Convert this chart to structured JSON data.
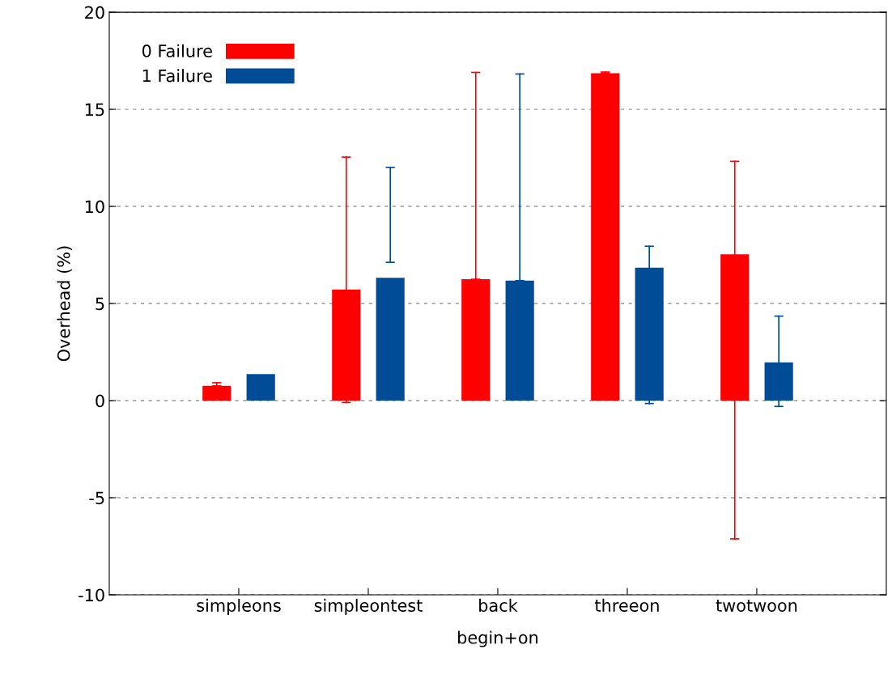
{
  "chart_data": {
    "type": "bar",
    "xlabel": "begin+on",
    "ylabel": "Overhead (%)",
    "categories": [
      "simpleons",
      "simpleontest",
      "back",
      "threeon",
      "twotwoon"
    ],
    "series": [
      {
        "name": "0 Failure",
        "color": "#ff0000",
        "values": [
          0.76,
          5.72,
          6.25,
          16.86,
          7.53
        ],
        "errors": [
          [
            0.76,
            0.92
          ],
          [
            -0.1,
            12.54
          ],
          [
            6.25,
            16.9
          ],
          [
            16.86,
            16.92
          ],
          [
            -7.12,
            12.32
          ]
        ]
      },
      {
        "name": "1 Failure",
        "color": "#004c97",
        "values": [
          1.37,
          6.32,
          6.18,
          6.85,
          1.97
        ],
        "errors": [
          null,
          [
            7.12,
            12.01
          ],
          [
            6.18,
            16.82
          ],
          [
            -0.15,
            7.95
          ],
          [
            -0.3,
            4.35
          ]
        ]
      }
    ],
    "ylim": [
      -10,
      20
    ],
    "yticks": [
      -10,
      -5,
      0,
      5,
      10,
      15,
      20
    ],
    "grid": "y",
    "legend": "top left"
  }
}
